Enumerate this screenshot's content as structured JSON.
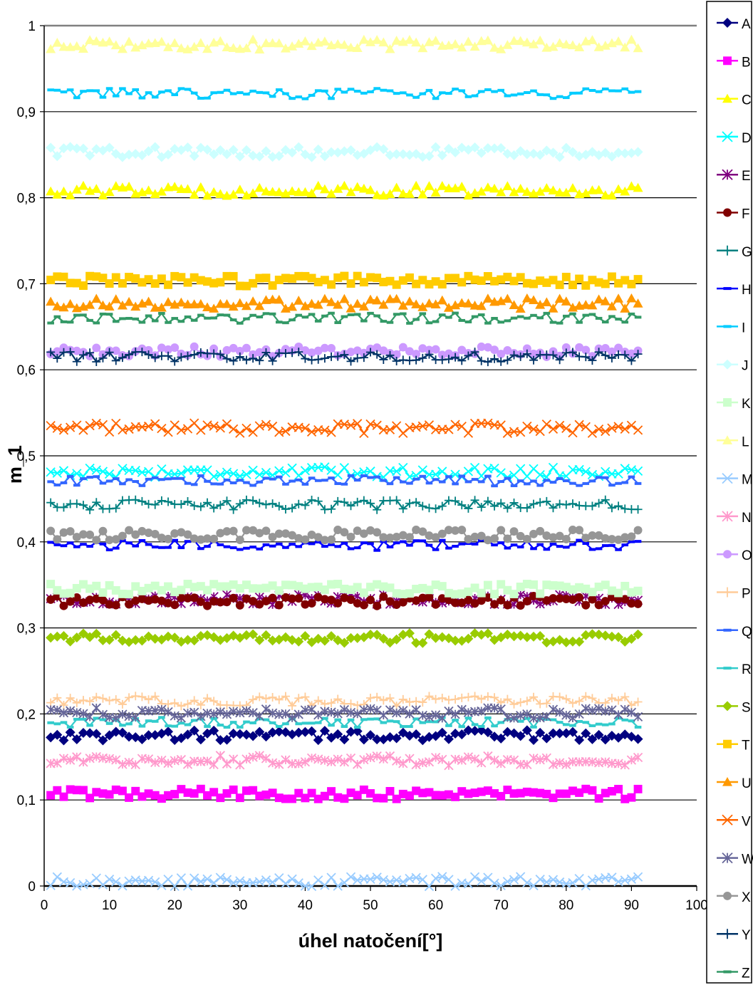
{
  "chart_data": {
    "type": "line",
    "title": "",
    "xlabel": "úhel natočení[°]",
    "ylabel": "m_1",
    "xlim": [
      0,
      100
    ],
    "ylim": [
      0,
      1
    ],
    "x_ticks": [
      "0",
      "10",
      "20",
      "30",
      "40",
      "50",
      "60",
      "70",
      "80",
      "90",
      "100"
    ],
    "y_ticks": [
      "0",
      "0,1",
      "0,2",
      "0,3",
      "0,4",
      "0,5",
      "0,6",
      "0,7",
      "0,8",
      "0,9",
      "1"
    ],
    "grid": "horizontal",
    "legend_position": "right",
    "x_range": [
      1,
      91
    ],
    "n_points": 91,
    "series": [
      {
        "name": "A",
        "level": 0.175,
        "color": "#000080",
        "marker": "diamond"
      },
      {
        "name": "B",
        "level": 0.107,
        "color": "#FF00FF",
        "marker": "square"
      },
      {
        "name": "C",
        "level": 0.808,
        "color": "#FFFF00",
        "marker": "triangle"
      },
      {
        "name": "D",
        "level": 0.481,
        "color": "#00FFFF",
        "marker": "x"
      },
      {
        "name": "E",
        "level": 0.333,
        "color": "#800080",
        "marker": "star"
      },
      {
        "name": "F",
        "level": 0.331,
        "color": "#800000",
        "marker": "circle"
      },
      {
        "name": "G",
        "level": 0.443,
        "color": "#008080",
        "marker": "plus"
      },
      {
        "name": "H",
        "level": 0.396,
        "color": "#0000FF",
        "marker": "dash"
      },
      {
        "name": "I",
        "level": 0.921,
        "color": "#00CCFF",
        "marker": "dash"
      },
      {
        "name": "J",
        "level": 0.853,
        "color": "#CCFFFF",
        "marker": "diamond"
      },
      {
        "name": "K",
        "level": 0.345,
        "color": "#CCFFCC",
        "marker": "square"
      },
      {
        "name": "L",
        "level": 0.978,
        "color": "#FFFF99",
        "marker": "triangle"
      },
      {
        "name": "M",
        "level": 0.005,
        "color": "#99CCFF",
        "marker": "x"
      },
      {
        "name": "N",
        "level": 0.146,
        "color": "#FF99CC",
        "marker": "star"
      },
      {
        "name": "O",
        "level": 0.621,
        "color": "#CC99FF",
        "marker": "circle"
      },
      {
        "name": "P",
        "level": 0.215,
        "color": "#FFCC99",
        "marker": "plus"
      },
      {
        "name": "Q",
        "level": 0.471,
        "color": "#3366FF",
        "marker": "dash"
      },
      {
        "name": "R",
        "level": 0.19,
        "color": "#33CCCC",
        "marker": "dash"
      },
      {
        "name": "S",
        "level": 0.288,
        "color": "#99CC00",
        "marker": "diamond"
      },
      {
        "name": "T",
        "level": 0.703,
        "color": "#FFCC00",
        "marker": "square"
      },
      {
        "name": "U",
        "level": 0.677,
        "color": "#FF9900",
        "marker": "triangle"
      },
      {
        "name": "V",
        "level": 0.532,
        "color": "#FF6600",
        "marker": "x"
      },
      {
        "name": "W",
        "level": 0.201,
        "color": "#666699",
        "marker": "star"
      },
      {
        "name": "X",
        "level": 0.408,
        "color": "#969696",
        "marker": "circle"
      },
      {
        "name": "Y",
        "level": 0.615,
        "color": "#003366",
        "marker": "plus"
      },
      {
        "name": "Z",
        "level": 0.66,
        "color": "#339966",
        "marker": "dash"
      }
    ]
  }
}
